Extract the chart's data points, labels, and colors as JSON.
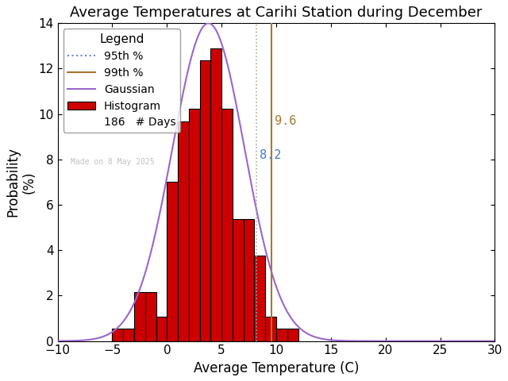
{
  "title": "Average Temperatures at Carihi Station during December",
  "xlabel": "Average Temperature (C)",
  "ylabel": "Probability\n(%)",
  "xlim": [
    -10,
    30
  ],
  "ylim": [
    0,
    14
  ],
  "xticks": [
    -10,
    -5,
    0,
    5,
    10,
    15,
    20,
    25,
    30
  ],
  "yticks": [
    0,
    2,
    4,
    6,
    8,
    10,
    12,
    14
  ],
  "bin_lefts": [
    -5,
    -4,
    -3,
    -2,
    -1,
    0,
    1,
    2,
    3,
    4,
    5,
    6,
    7,
    8,
    9,
    10,
    11
  ],
  "bin_heights": [
    0.54,
    0.54,
    2.15,
    2.15,
    1.08,
    7.0,
    9.68,
    10.22,
    12.37,
    12.9,
    10.22,
    5.38,
    5.38,
    3.76,
    1.08,
    0.54,
    0.54
  ],
  "bin_width": 1,
  "gaussian_mean": 3.8,
  "gaussian_std": 3.3,
  "gaussian_peak": 14.0,
  "percentile_95": 8.2,
  "percentile_99": 9.6,
  "n_days": 186,
  "hist_color": "#cc0000",
  "hist_edgecolor": "#000000",
  "gauss_color": "#9966cc",
  "p95_color": "#aaaaaa",
  "p95_dotcolor": "#6688cc",
  "p99_color": "#aa7733",
  "legend_title": "Legend",
  "watermark": "Made on 8 May 2025",
  "title_fontsize": 13,
  "label_fontsize": 12,
  "tick_fontsize": 11,
  "legend_fontsize": 11,
  "p95_label_color": "#4477cc",
  "p99_label_color": "#aa7733"
}
